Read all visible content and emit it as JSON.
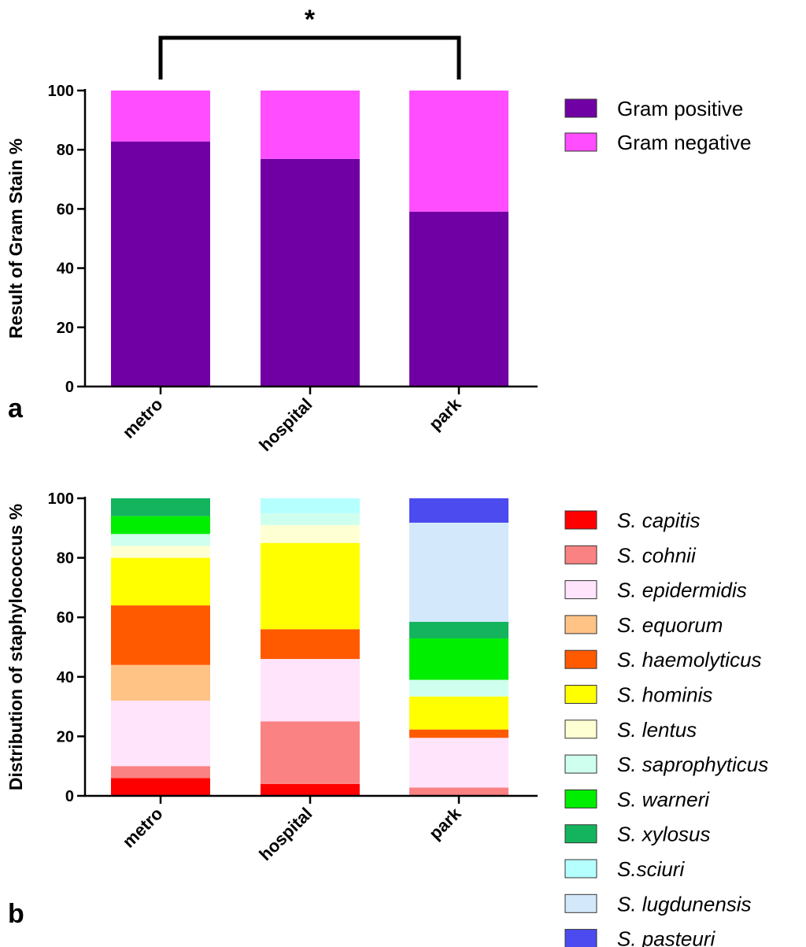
{
  "chart_data": [
    {
      "type": "bar",
      "stacked": true,
      "panel": "a",
      "categories": [
        "metro",
        "hospital",
        "park"
      ],
      "ylabel": "Result of Gram Stain %",
      "xlabel": "",
      "ylim": [
        0,
        100
      ],
      "yticks": [
        0,
        20,
        40,
        60,
        80,
        100
      ],
      "series": [
        {
          "name": "Gram positive",
          "color": "#7100a4",
          "values": [
            82.8,
            76.9,
            59.1
          ]
        },
        {
          "name": "Gram negative",
          "color": "#ff4dff",
          "values": [
            17.2,
            23.1,
            40.9
          ]
        }
      ],
      "annotation": {
        "text": "*",
        "from": "metro",
        "to": "park"
      },
      "legend_position": "top-right"
    },
    {
      "type": "bar",
      "stacked": true,
      "panel": "b",
      "categories": [
        "metro",
        "hospital",
        "park"
      ],
      "ylabel": "Distribution of staphylococcus %",
      "xlabel": "",
      "ylim": [
        0,
        100
      ],
      "yticks": [
        0,
        20,
        40,
        60,
        80,
        100
      ],
      "series": [
        {
          "name": "S. capitis",
          "color": "#ff0000",
          "values": [
            6,
            4,
            0
          ]
        },
        {
          "name": "S. cohnii",
          "color": "#fa8282",
          "values": [
            4,
            21,
            2.8
          ]
        },
        {
          "name": "S. epidermidis",
          "color": "#ffe4fb",
          "values": [
            22,
            21,
            16.7
          ]
        },
        {
          "name": "S. equorum",
          "color": "#ffc385",
          "values": [
            12,
            0,
            0
          ]
        },
        {
          "name": "S. haemolyticus",
          "color": "#ff5a00",
          "values": [
            20,
            10,
            2.8
          ]
        },
        {
          "name": "S. hominis",
          "color": "#ffff00",
          "values": [
            16,
            29,
            11.1
          ]
        },
        {
          "name": "S. lentus",
          "color": "#ffffd4",
          "values": [
            4,
            6,
            0
          ]
        },
        {
          "name": "S. saprophyticus",
          "color": "#cfffee",
          "values": [
            4,
            4,
            5.6
          ]
        },
        {
          "name": "S. warneri",
          "color": "#00ee00",
          "values": [
            6,
            0,
            13.9
          ]
        },
        {
          "name": "S. xylosus",
          "color": "#14b45e",
          "values": [
            6,
            0,
            5.6
          ]
        },
        {
          "name": "S.sciuri",
          "color": "#b5ffff",
          "values": [
            0,
            5,
            0
          ]
        },
        {
          "name": "S. lugdunensis",
          "color": "#d3e8fa",
          "values": [
            0,
            0,
            33.3
          ]
        },
        {
          "name": "S. pasteuri",
          "color": "#4b4bf0",
          "values": [
            0,
            0,
            8.2
          ]
        }
      ],
      "legend_position": "right"
    }
  ],
  "panel_labels": [
    "a",
    "b"
  ]
}
